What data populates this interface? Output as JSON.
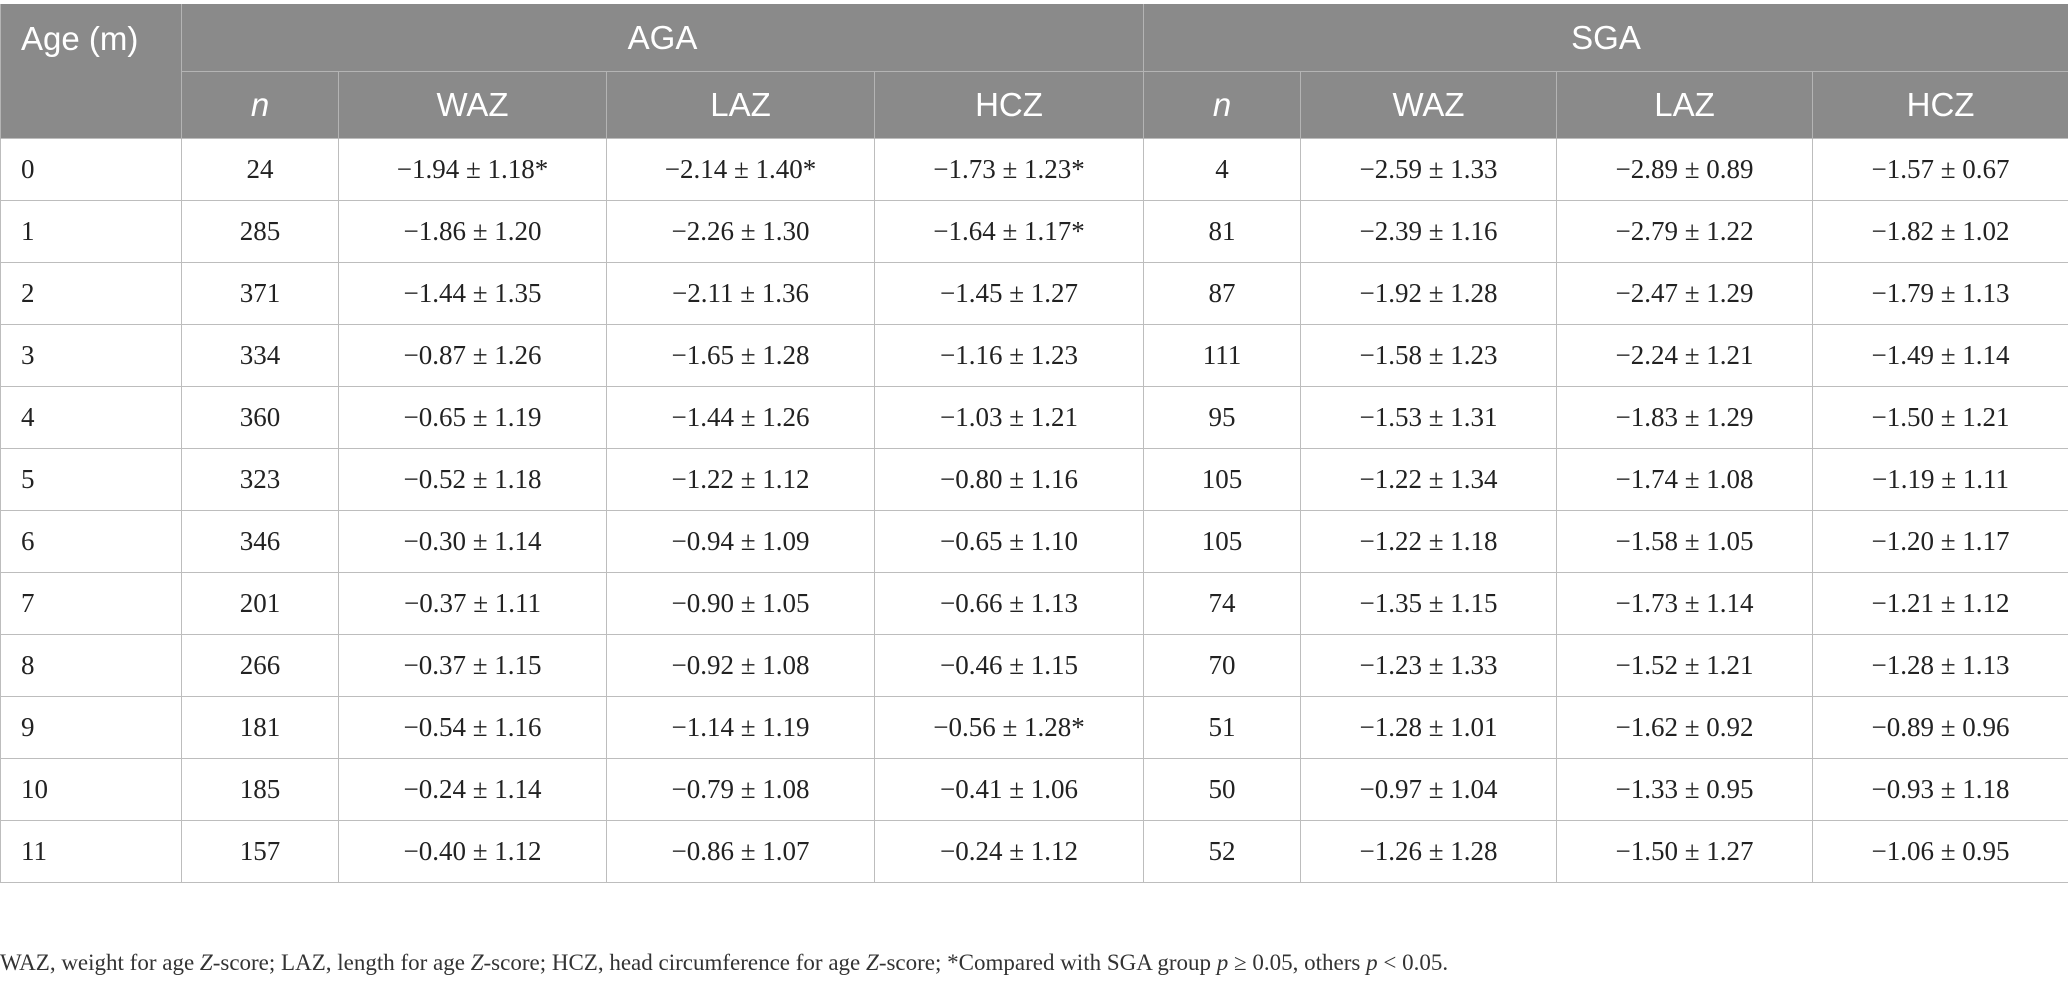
{
  "table": {
    "age_header": "Age (m)",
    "groups": [
      "AGA",
      "SGA"
    ],
    "subheaders": [
      "n",
      "WAZ",
      "LAZ",
      "HCZ",
      "n",
      "WAZ",
      "LAZ",
      "HCZ"
    ],
    "rows": [
      [
        "0",
        "24",
        "−1.94 ± 1.18*",
        "−2.14 ± 1.40*",
        "−1.73 ± 1.23*",
        "4",
        "−2.59 ± 1.33",
        "−2.89 ± 0.89",
        "−1.57 ± 0.67"
      ],
      [
        "1",
        "285",
        "−1.86 ± 1.20",
        "−2.26 ± 1.30",
        "−1.64 ± 1.17*",
        "81",
        "−2.39 ± 1.16",
        "−2.79 ± 1.22",
        "−1.82 ± 1.02"
      ],
      [
        "2",
        "371",
        "−1.44 ± 1.35",
        "−2.11 ± 1.36",
        "−1.45 ± 1.27",
        "87",
        "−1.92 ± 1.28",
        "−2.47 ± 1.29",
        "−1.79 ± 1.13"
      ],
      [
        "3",
        "334",
        "−0.87 ± 1.26",
        "−1.65 ± 1.28",
        "−1.16 ± 1.23",
        "111",
        "−1.58 ± 1.23",
        "−2.24 ± 1.21",
        "−1.49 ± 1.14"
      ],
      [
        "4",
        "360",
        "−0.65 ± 1.19",
        "−1.44 ± 1.26",
        "−1.03 ± 1.21",
        "95",
        "−1.53 ± 1.31",
        "−1.83 ± 1.29",
        "−1.50 ± 1.21"
      ],
      [
        "5",
        "323",
        "−0.52 ± 1.18",
        "−1.22 ± 1.12",
        "−0.80 ± 1.16",
        "105",
        "−1.22 ± 1.34",
        "−1.74 ± 1.08",
        "−1.19 ± 1.11"
      ],
      [
        "6",
        "346",
        "−0.30 ± 1.14",
        "−0.94 ± 1.09",
        "−0.65 ± 1.10",
        "105",
        "−1.22 ± 1.18",
        "−1.58 ± 1.05",
        "−1.20 ± 1.17"
      ],
      [
        "7",
        "201",
        "−0.37 ± 1.11",
        "−0.90 ± 1.05",
        "−0.66 ± 1.13",
        "74",
        "−1.35 ± 1.15",
        "−1.73 ± 1.14",
        "−1.21 ± 1.12"
      ],
      [
        "8",
        "266",
        "−0.37 ± 1.15",
        "−0.92 ± 1.08",
        "−0.46 ± 1.15",
        "70",
        "−1.23 ± 1.33",
        "−1.52 ± 1.21",
        "−1.28 ± 1.13"
      ],
      [
        "9",
        "181",
        "−0.54 ± 1.16",
        "−1.14 ± 1.19",
        "−0.56 ± 1.28*",
        "51",
        "−1.28 ± 1.01",
        "−1.62 ± 0.92",
        "−0.89 ± 0.96"
      ],
      [
        "10",
        "185",
        "−0.24 ± 1.14",
        "−0.79 ± 1.08",
        "−0.41 ± 1.06",
        "50",
        "−0.97 ± 1.04",
        "−1.33 ± 0.95",
        "−0.93 ± 1.18"
      ],
      [
        "11",
        "157",
        "−0.40 ± 1.12",
        "−0.86 ± 1.07",
        "−0.24 ± 1.12",
        "52",
        "−1.26 ± 1.28",
        "−1.50 ± 1.27",
        "−1.06 ± 0.95"
      ]
    ]
  },
  "footnote": {
    "waz_label": "WAZ, weight for age ",
    "waz_z": "Z",
    "laz_label": "-score; LAZ, length for age ",
    "laz_z": "Z",
    "hcz_label": "-score; HCZ, head circumference for age ",
    "hcz_z": "Z",
    "compare_label": "-score; *Compared with SGA group ",
    "p1": "p",
    "p1_rest": " ≥ 0.05, others ",
    "p2": "p",
    "p2_rest": " < 0.05."
  }
}
